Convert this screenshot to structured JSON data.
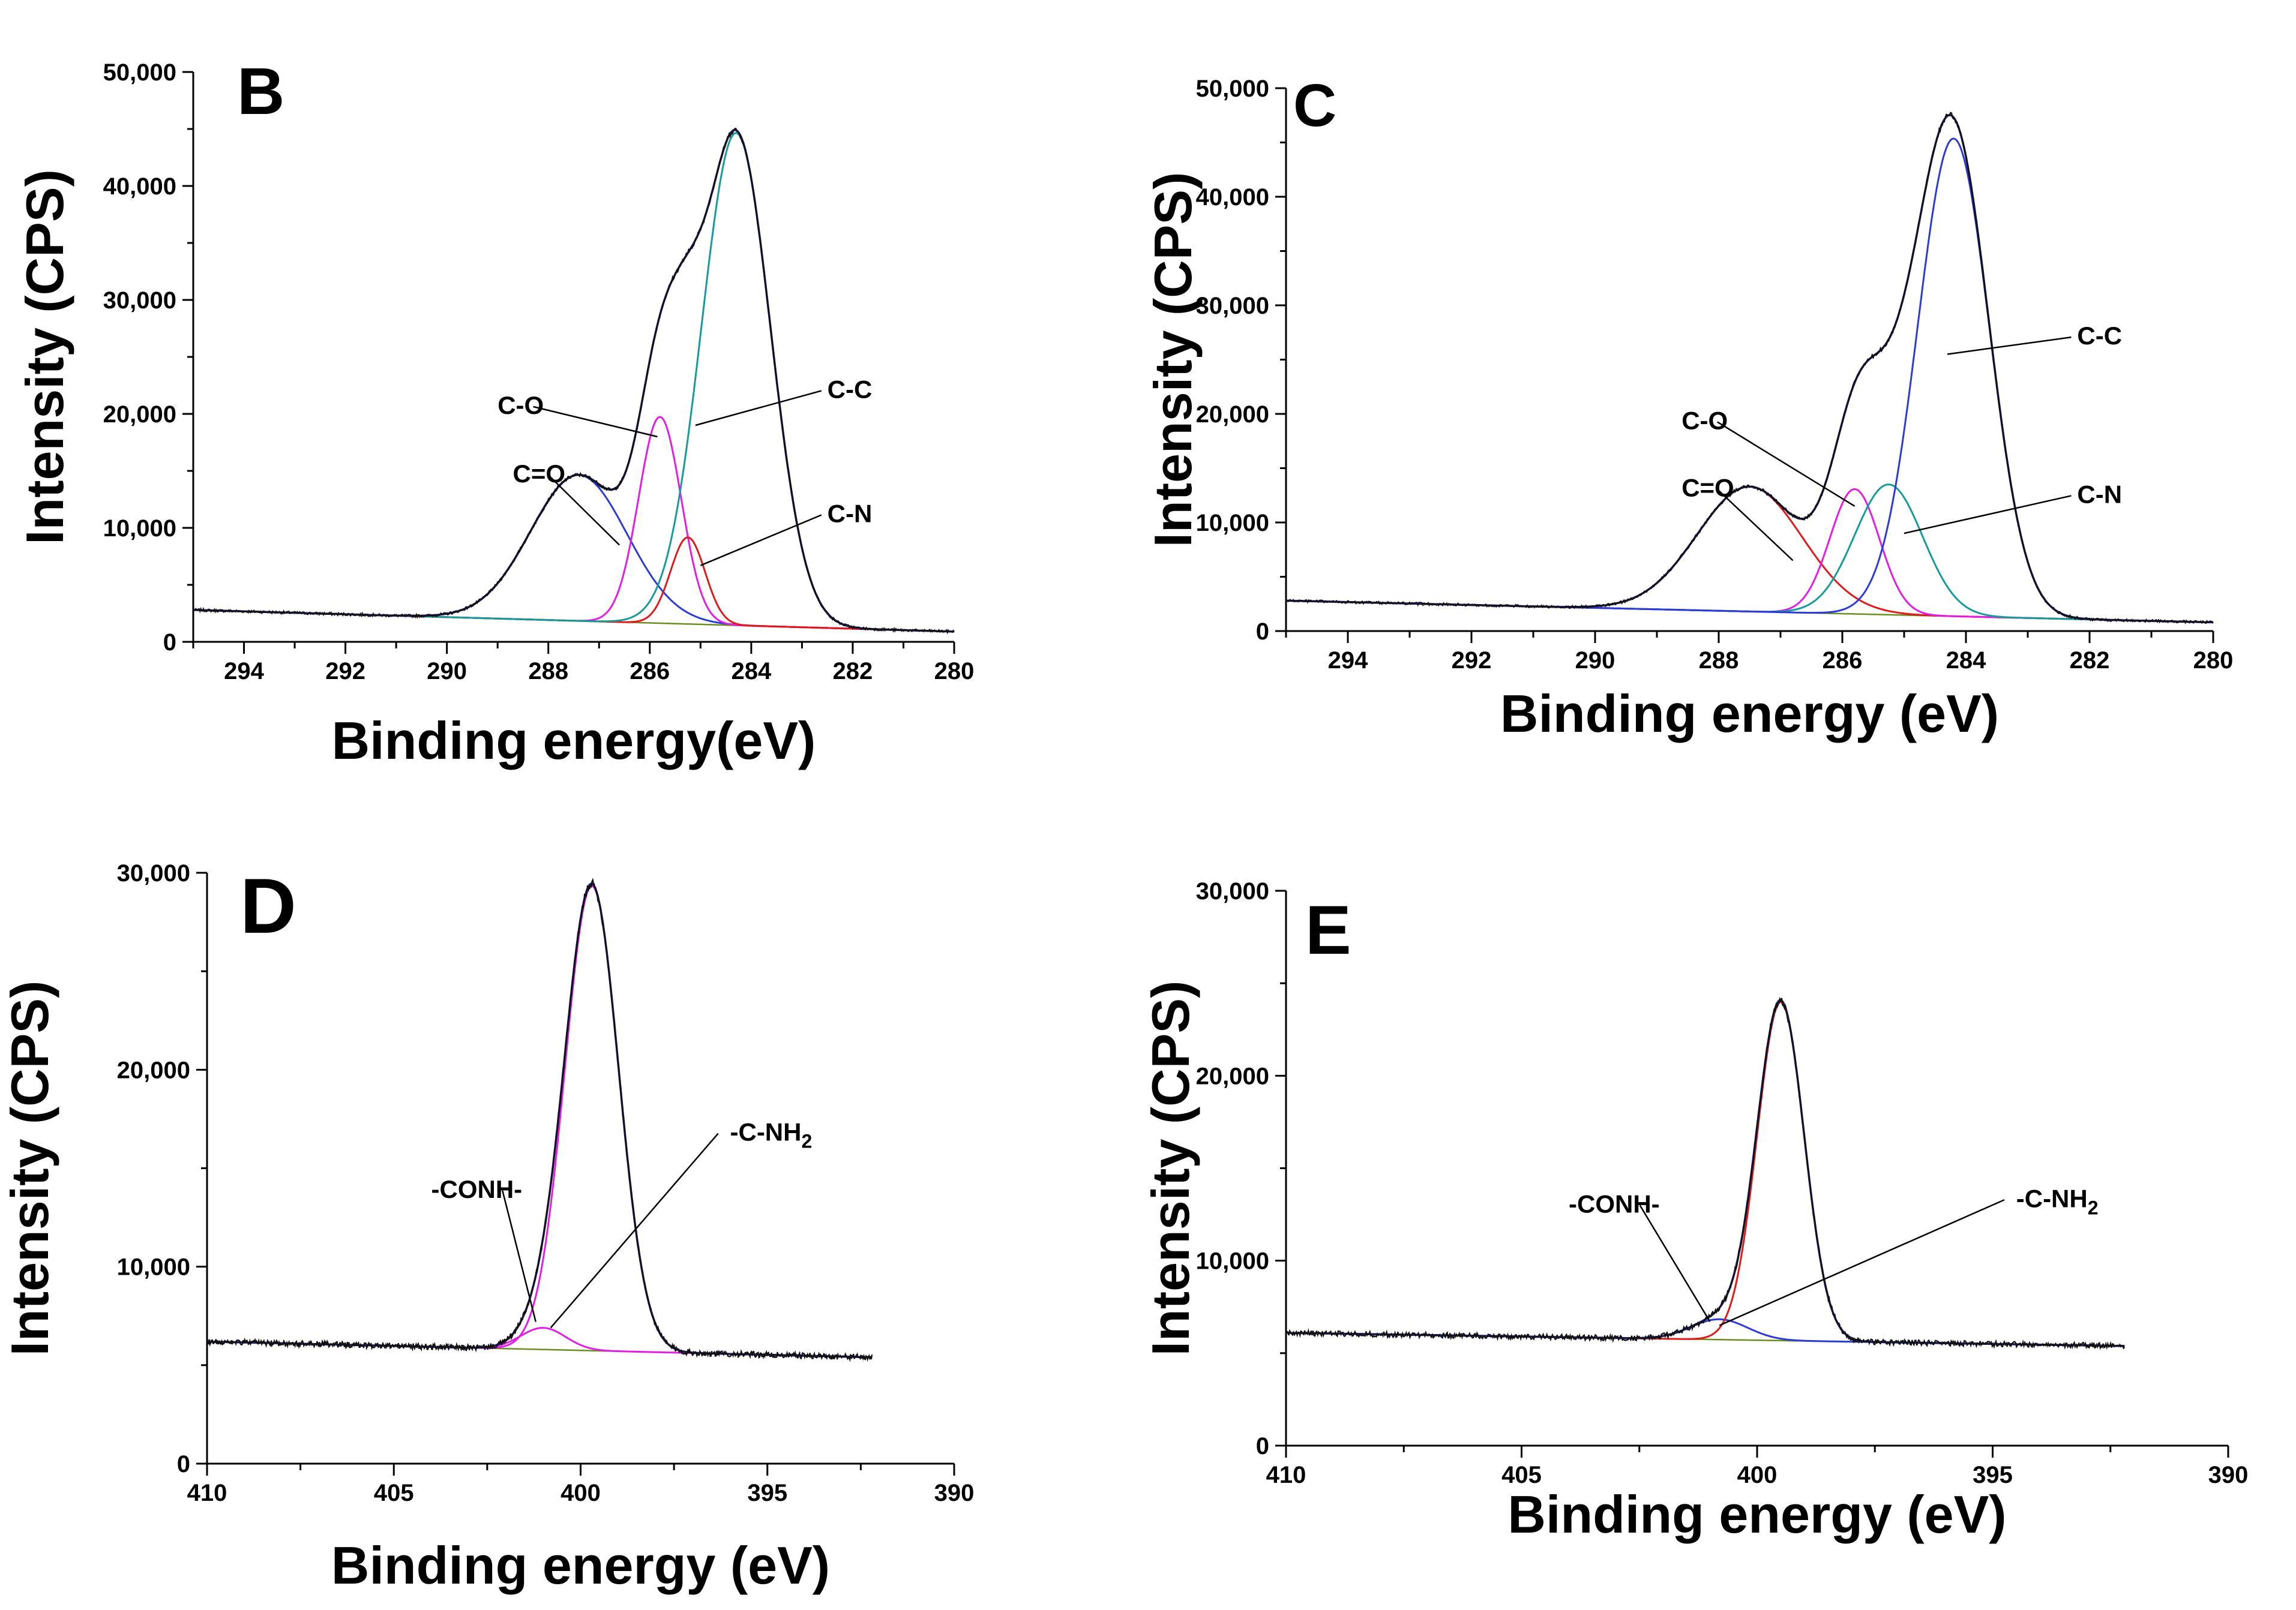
{
  "figure": {
    "description_panels": [
      "B",
      "C",
      "D",
      "E"
    ]
  },
  "chart_data": [
    {
      "panel_id": "B",
      "type": "line",
      "title": "B",
      "xlabel": "Binding energy(eV)",
      "ylabel": "Intensity (CPS)",
      "xlim": [
        295,
        280
      ],
      "ylim": [
        0,
        50000
      ],
      "xticks": [
        294,
        292,
        290,
        288,
        286,
        284,
        282,
        280
      ],
      "yticks": [
        0,
        10000,
        20000,
        30000,
        40000,
        50000
      ],
      "ytick_labels": [
        "0",
        "10,000",
        "20,000",
        "30,000",
        "40,000",
        "50,000"
      ],
      "background": {
        "left": 2800,
        "right": 900
      },
      "noise_amplitude": 110,
      "components": [
        {
          "name": "C=O",
          "center": 287.4,
          "amplitude": 12800,
          "sigma": 0.95,
          "color": "#2b3bd4"
        },
        {
          "name": "C-O",
          "center": 285.8,
          "amplitude": 18100,
          "sigma": 0.42,
          "color": "#e21ee3"
        },
        {
          "name": "C-N",
          "center": 285.25,
          "amplitude": 7600,
          "sigma": 0.34,
          "color": "#e01a1a"
        },
        {
          "name": "C-C",
          "center": 284.3,
          "amplitude": 43200,
          "sigma": 0.68,
          "color": "#169a9a"
        }
      ],
      "annotations": [
        {
          "text": "C=O",
          "x": 288.7,
          "y": 14000,
          "tip_x": 286.6,
          "tip_y": 8500
        },
        {
          "text": "C-O",
          "x": 289.0,
          "y": 20000,
          "tip_x": 285.85,
          "tip_y": 18000
        },
        {
          "text": "C-C",
          "x": 282.5,
          "y": 21400,
          "tip_x": 285.1,
          "tip_y": 19000
        },
        {
          "text": "C-N",
          "x": 282.5,
          "y": 10500,
          "tip_x": 285.0,
          "tip_y": 6700
        }
      ]
    },
    {
      "panel_id": "C",
      "type": "line",
      "title": "C",
      "xlabel": "Binding energy (eV)",
      "ylabel": "Intensity (CPS)",
      "xlim": [
        295,
        280
      ],
      "ylim": [
        0,
        50000
      ],
      "xticks": [
        294,
        292,
        290,
        288,
        286,
        284,
        282,
        280
      ],
      "yticks": [
        0,
        10000,
        20000,
        30000,
        40000,
        50000
      ],
      "ytick_labels": [
        "0",
        "10,000",
        "20,000",
        "30,000",
        "40,000",
        "50,000"
      ],
      "background": {
        "left": 2800,
        "right": 800
      },
      "noise_amplitude": 110,
      "components": [
        {
          "name": "C=O",
          "center": 287.5,
          "amplitude": 11500,
          "sigma": 0.85,
          "color": "#e01a1a"
        },
        {
          "name": "C-O",
          "center": 285.8,
          "amplitude": 11500,
          "sigma": 0.4,
          "color": "#e21ee3"
        },
        {
          "name": "C-N",
          "center": 285.25,
          "amplitude": 12000,
          "sigma": 0.55,
          "color": "#169a9a"
        },
        {
          "name": "C-C",
          "center": 284.2,
          "amplitude": 44000,
          "sigma": 0.58,
          "color": "#2b3bd4"
        }
      ],
      "annotations": [
        {
          "text": "C-C",
          "x": 282.2,
          "y": 26400,
          "tip_x": 284.3,
          "tip_y": 25500
        },
        {
          "text": "C-O",
          "x": 288.6,
          "y": 18600,
          "tip_x": 285.8,
          "tip_y": 11500
        },
        {
          "text": "C=O",
          "x": 288.6,
          "y": 12400,
          "tip_x": 286.8,
          "tip_y": 6500
        },
        {
          "text": "C-N",
          "x": 282.2,
          "y": 11800,
          "tip_x": 285.0,
          "tip_y": 9000
        }
      ]
    },
    {
      "panel_id": "D",
      "type": "line",
      "title": "D",
      "xlabel": "Binding energy (eV)",
      "ylabel": "Intensity (CPS)",
      "xlim": [
        410,
        390
      ],
      "ylim": [
        0,
        30000
      ],
      "xticks": [
        410,
        405,
        400,
        395,
        390
      ],
      "yticks": [
        0,
        10000,
        20000,
        30000
      ],
      "ytick_labels": [
        "0",
        "10,000",
        "20,000",
        "30,000"
      ],
      "data_range": [
        410,
        392.2
      ],
      "background": {
        "left": 6200,
        "right": 5300
      },
      "noise_amplitude": 130,
      "components": [
        {
          "name": "-CONH-",
          "center": 401.0,
          "amplitude": 1100,
          "sigma": 0.6,
          "color": "#e21ee3"
        },
        {
          "name": "-C-NH2",
          "center": 399.7,
          "amplitude": 23600,
          "sigma": 0.72,
          "color": "#e21ee3"
        }
      ],
      "annotations": [
        {
          "text": "-CONH-",
          "x": 404.0,
          "y": 13500,
          "tip_x": 401.2,
          "tip_y": 7200
        },
        {
          "text": "-C-NH2",
          "x": 396.0,
          "y": 16400,
          "tip_x": 400.8,
          "tip_y": 6900
        }
      ]
    },
    {
      "panel_id": "E",
      "type": "line",
      "title": "E",
      "xlabel": "Binding energy (eV)",
      "ylabel": "Intensity (CPS)",
      "xlim": [
        410,
        390
      ],
      "ylim": [
        0,
        30000
      ],
      "xticks": [
        410,
        405,
        400,
        395,
        390
      ],
      "yticks": [
        0,
        10000,
        20000,
        30000
      ],
      "ytick_labels": [
        "0",
        "10,000",
        "20,000",
        "30,000"
      ],
      "data_range": [
        410,
        392.2
      ],
      "background": {
        "left": 6100,
        "right": 5300
      },
      "noise_amplitude": 130,
      "components": [
        {
          "name": "-CONH-",
          "center": 400.8,
          "amplitude": 1100,
          "sigma": 0.6,
          "color": "#2b3bd4"
        },
        {
          "name": "-C-NH2",
          "center": 399.5,
          "amplitude": 18300,
          "sigma": 0.5,
          "color": "#e01a1a"
        }
      ],
      "annotations": [
        {
          "text": "-CONH-",
          "x": 404.0,
          "y": 12600,
          "tip_x": 401.0,
          "tip_y": 6700
        },
        {
          "text": "-C-NH2",
          "x": 394.5,
          "y": 12900,
          "tip_x": 400.8,
          "tip_y": 6500
        }
      ]
    }
  ]
}
